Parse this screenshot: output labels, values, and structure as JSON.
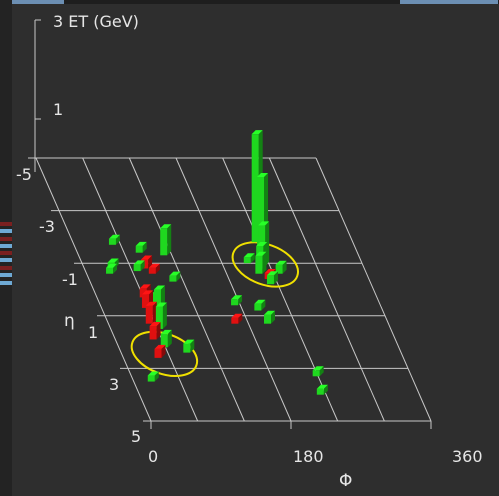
{
  "plot": {
    "type": "lego-plot",
    "et_axis": {
      "top_label": "3 ET (GeV)",
      "tick_labels": [
        "1"
      ],
      "tick_values": [
        1
      ],
      "max": 3
    },
    "eta_axis": {
      "title": "η",
      "tick_labels": [
        "-5",
        "-3",
        "-1",
        "1",
        "3",
        "5"
      ],
      "range": [
        -5,
        5
      ]
    },
    "phi_axis": {
      "title": "Φ",
      "tick_labels": [
        "0",
        "180",
        "360"
      ],
      "range": [
        0,
        360
      ]
    },
    "colors": {
      "background": "#2e2e2e",
      "grid": "#c8c8c8",
      "axis_text": "#e6e6e6",
      "hadronic": "#1fd81f",
      "electromagnetic": "#e01010",
      "jet_ellipse": "#f0e000"
    }
  },
  "chart_data": {
    "type": "lego",
    "xlabel": "Φ",
    "ylabel": "η",
    "zlabel": "3 ET (GeV)",
    "xlim": [
      0,
      360
    ],
    "ylim": [
      -5,
      5
    ],
    "zlim": [
      0,
      3
    ],
    "series": [
      {
        "name": "",
        "color": "#1fd81f",
        "points": [
          {
            "phi": 230,
            "eta": -1.8,
            "et": 2.4
          },
          {
            "phi": 228,
            "eta": -1.2,
            "et": 1.8
          },
          {
            "phi": 225,
            "eta": -0.9,
            "et": 0.9
          },
          {
            "phi": 221,
            "eta": -0.8,
            "et": 0.5
          },
          {
            "phi": 217,
            "eta": -0.6,
            "et": 0.4
          },
          {
            "phi": 226,
            "eta": -0.2,
            "et": 0.2
          },
          {
            "phi": 208,
            "eta": -1.0,
            "et": 0.1
          },
          {
            "phi": 243,
            "eta": -0.6,
            "et": 0.2
          },
          {
            "phi": 195,
            "eta": 0.8,
            "et": 0.15
          },
          {
            "phi": 200,
            "eta": 1.3,
            "et": 0.2
          },
          {
            "phi": 168,
            "eta": 0.6,
            "et": 0.1
          },
          {
            "phi": 105,
            "eta": -1.3,
            "et": 0.6
          },
          {
            "phi": 102,
            "eta": -0.3,
            "et": 0.1
          },
          {
            "phi": 75,
            "eta": -1.4,
            "et": 0.15
          },
          {
            "phi": 62,
            "eta": -0.7,
            "et": 0.15
          },
          {
            "phi": 45,
            "eta": -1.7,
            "et": 0.1
          },
          {
            "phi": 30,
            "eta": -0.8,
            "et": 0.1
          },
          {
            "phi": 25,
            "eta": -0.6,
            "et": 0.1
          },
          {
            "phi": 68,
            "eta": 0.5,
            "et": 0.2
          },
          {
            "phi": 60,
            "eta": 1.2,
            "et": 0.7
          },
          {
            "phi": 58,
            "eta": 1.5,
            "et": 0.5
          },
          {
            "phi": 54,
            "eta": 2.2,
            "et": 0.3
          },
          {
            "phi": 80,
            "eta": 2.4,
            "et": 0.2
          },
          {
            "phi": 18,
            "eta": 3.5,
            "et": 0.1
          },
          {
            "phi": 233,
            "eta": 3.3,
            "et": 0.1
          },
          {
            "phi": 228,
            "eta": 4.0,
            "et": 0.1
          }
        ]
      },
      {
        "name": "",
        "color": "#e01010",
        "points": [
          {
            "phi": 73,
            "eta": -0.8,
            "et": 0.2
          },
          {
            "phi": 80,
            "eta": -0.6,
            "et": 0.1
          },
          {
            "phi": 226,
            "eta": -0.4,
            "et": 0.1
          },
          {
            "phi": 55,
            "eta": 0.3,
            "et": 0.2
          },
          {
            "phi": 52,
            "eta": 0.7,
            "et": 0.3
          },
          {
            "phi": 48,
            "eta": 1.3,
            "et": 0.4
          },
          {
            "phi": 44,
            "eta": 1.9,
            "et": 0.3
          },
          {
            "phi": 40,
            "eta": 2.6,
            "et": 0.2
          },
          {
            "phi": 158,
            "eta": 1.3,
            "et": 0.1
          }
        ]
      }
    ],
    "jets": [
      {
        "phi": 225,
        "eta": -0.8,
        "r_phi": 30,
        "r_eta": 0.9
      },
      {
        "phi": 45,
        "eta": 2.6,
        "r_phi": 32,
        "r_eta": 1.0
      }
    ]
  }
}
